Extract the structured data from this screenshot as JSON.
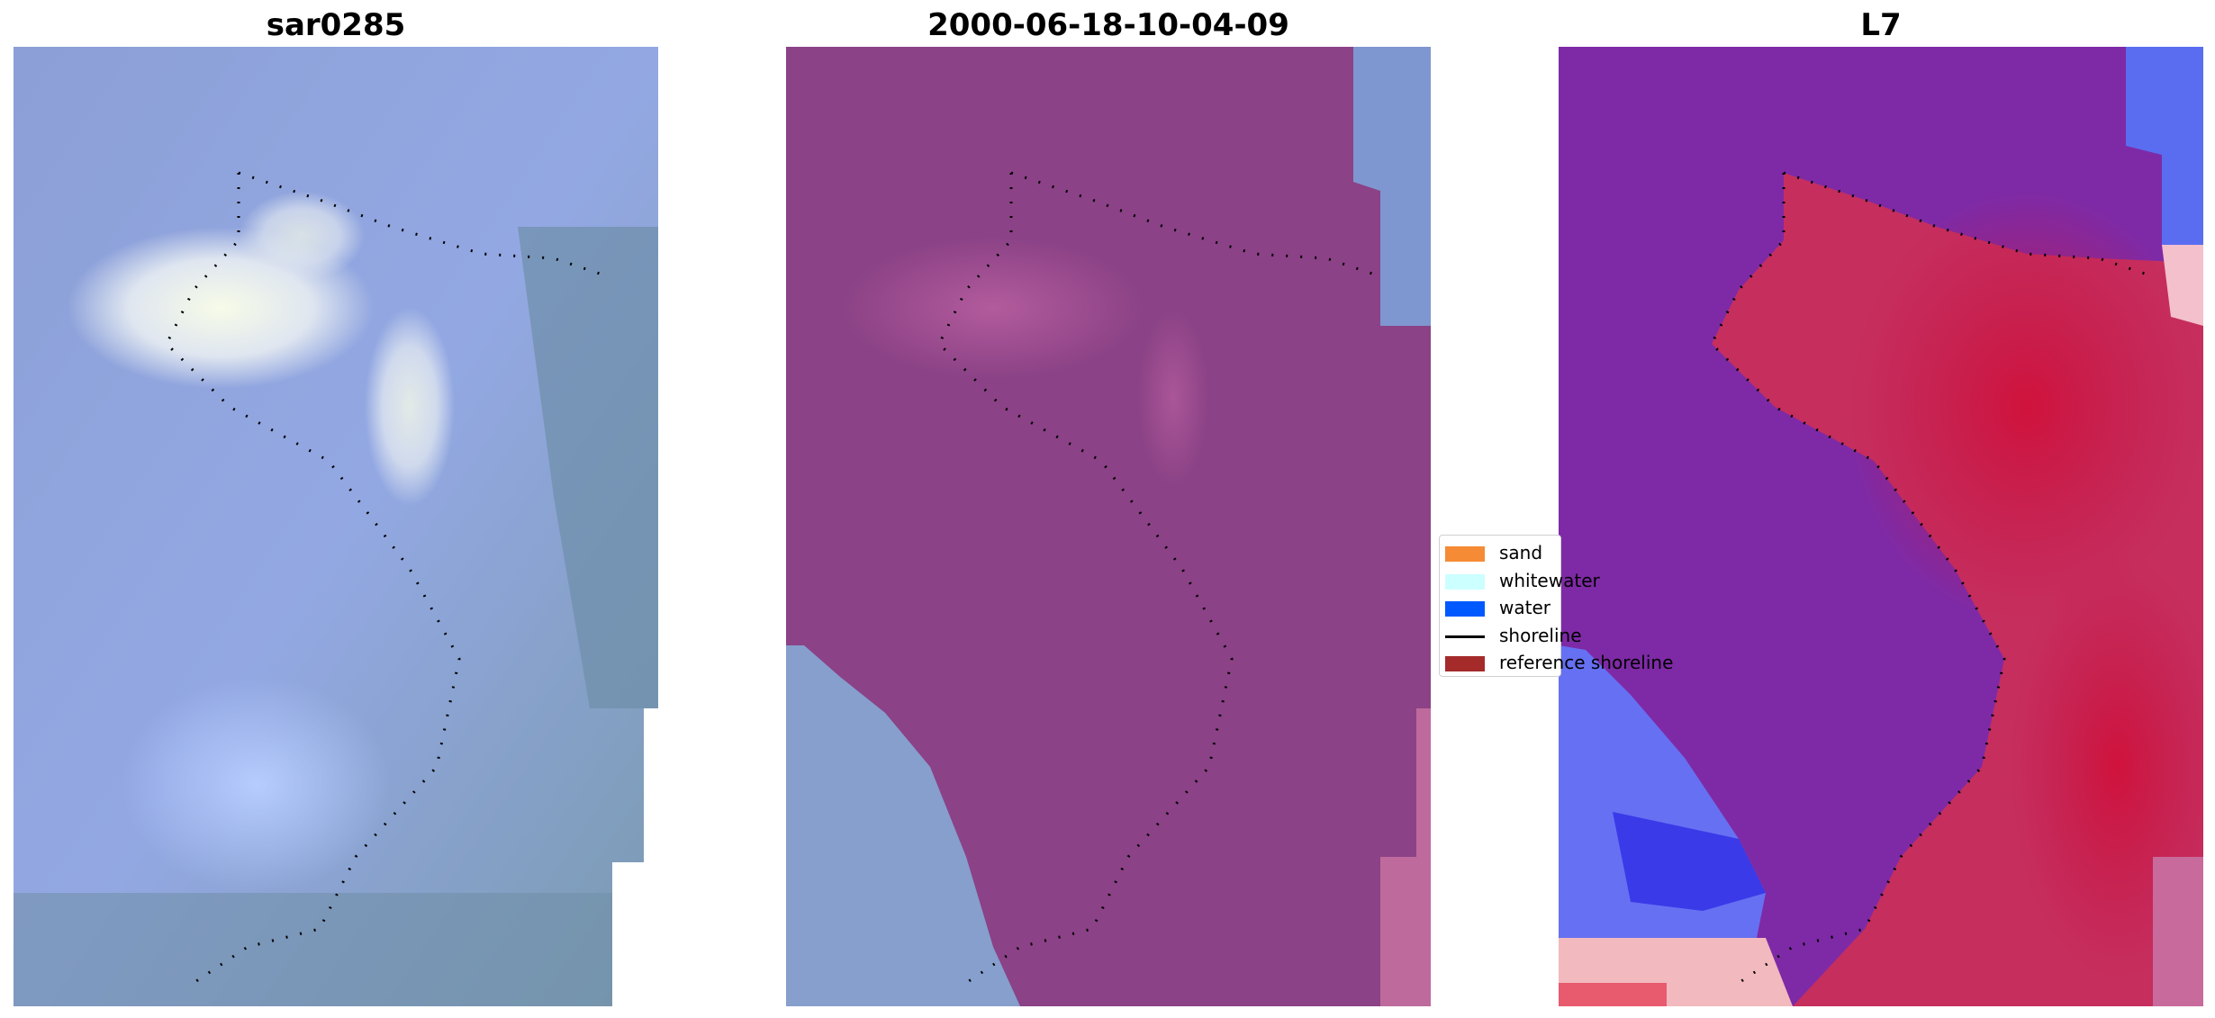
{
  "panels": [
    {
      "title": "sar0285"
    },
    {
      "title": "2000-06-18-10-04-09"
    },
    {
      "title": "L7"
    }
  ],
  "legend": {
    "items": [
      {
        "label": "sand",
        "color": "#f58b35"
      },
      {
        "label": "whitewater",
        "color": "#ccffff"
      },
      {
        "label": "water",
        "color": "#0059ff"
      },
      {
        "label": "shoreline",
        "color": "#000000"
      },
      {
        "label": "reference shoreline",
        "color": "#a52a2a"
      }
    ]
  }
}
